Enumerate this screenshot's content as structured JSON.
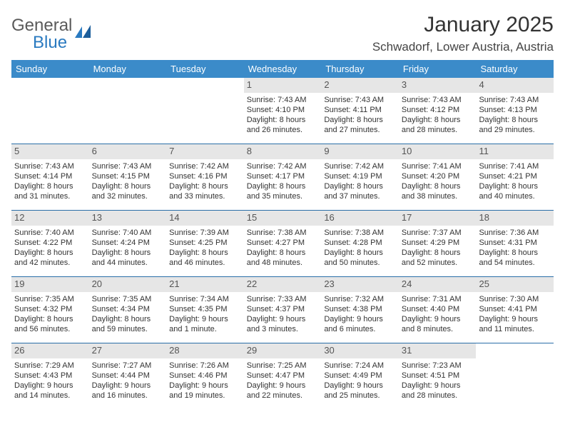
{
  "brand": {
    "general": "General",
    "blue": "Blue"
  },
  "title": "January 2025",
  "location": "Schwadorf, Lower Austria, Austria",
  "colors": {
    "header_bg": "#3b8bc9",
    "daynum_bg": "#e6e6e6",
    "week_border": "#2a6ea8",
    "text": "#333333"
  },
  "dayNames": [
    "Sunday",
    "Monday",
    "Tuesday",
    "Wednesday",
    "Thursday",
    "Friday",
    "Saturday"
  ],
  "grid": [
    [
      null,
      null,
      null,
      {
        "n": "1",
        "sr": "7:43 AM",
        "ss": "4:10 PM",
        "dh": "8",
        "dm": "26"
      },
      {
        "n": "2",
        "sr": "7:43 AM",
        "ss": "4:11 PM",
        "dh": "8",
        "dm": "27"
      },
      {
        "n": "3",
        "sr": "7:43 AM",
        "ss": "4:12 PM",
        "dh": "8",
        "dm": "28"
      },
      {
        "n": "4",
        "sr": "7:43 AM",
        "ss": "4:13 PM",
        "dh": "8",
        "dm": "29"
      }
    ],
    [
      {
        "n": "5",
        "sr": "7:43 AM",
        "ss": "4:14 PM",
        "dh": "8",
        "dm": "31"
      },
      {
        "n": "6",
        "sr": "7:43 AM",
        "ss": "4:15 PM",
        "dh": "8",
        "dm": "32"
      },
      {
        "n": "7",
        "sr": "7:42 AM",
        "ss": "4:16 PM",
        "dh": "8",
        "dm": "33"
      },
      {
        "n": "8",
        "sr": "7:42 AM",
        "ss": "4:17 PM",
        "dh": "8",
        "dm": "35"
      },
      {
        "n": "9",
        "sr": "7:42 AM",
        "ss": "4:19 PM",
        "dh": "8",
        "dm": "37"
      },
      {
        "n": "10",
        "sr": "7:41 AM",
        "ss": "4:20 PM",
        "dh": "8",
        "dm": "38"
      },
      {
        "n": "11",
        "sr": "7:41 AM",
        "ss": "4:21 PM",
        "dh": "8",
        "dm": "40"
      }
    ],
    [
      {
        "n": "12",
        "sr": "7:40 AM",
        "ss": "4:22 PM",
        "dh": "8",
        "dm": "42"
      },
      {
        "n": "13",
        "sr": "7:40 AM",
        "ss": "4:24 PM",
        "dh": "8",
        "dm": "44"
      },
      {
        "n": "14",
        "sr": "7:39 AM",
        "ss": "4:25 PM",
        "dh": "8",
        "dm": "46"
      },
      {
        "n": "15",
        "sr": "7:38 AM",
        "ss": "4:27 PM",
        "dh": "8",
        "dm": "48"
      },
      {
        "n": "16",
        "sr": "7:38 AM",
        "ss": "4:28 PM",
        "dh": "8",
        "dm": "50"
      },
      {
        "n": "17",
        "sr": "7:37 AM",
        "ss": "4:29 PM",
        "dh": "8",
        "dm": "52"
      },
      {
        "n": "18",
        "sr": "7:36 AM",
        "ss": "4:31 PM",
        "dh": "8",
        "dm": "54"
      }
    ],
    [
      {
        "n": "19",
        "sr": "7:35 AM",
        "ss": "4:32 PM",
        "dh": "8",
        "dm": "56"
      },
      {
        "n": "20",
        "sr": "7:35 AM",
        "ss": "4:34 PM",
        "dh": "8",
        "dm": "59"
      },
      {
        "n": "21",
        "sr": "7:34 AM",
        "ss": "4:35 PM",
        "dh": "9",
        "dm": "1",
        "unit": "minute"
      },
      {
        "n": "22",
        "sr": "7:33 AM",
        "ss": "4:37 PM",
        "dh": "9",
        "dm": "3"
      },
      {
        "n": "23",
        "sr": "7:32 AM",
        "ss": "4:38 PM",
        "dh": "9",
        "dm": "6"
      },
      {
        "n": "24",
        "sr": "7:31 AM",
        "ss": "4:40 PM",
        "dh": "9",
        "dm": "8"
      },
      {
        "n": "25",
        "sr": "7:30 AM",
        "ss": "4:41 PM",
        "dh": "9",
        "dm": "11"
      }
    ],
    [
      {
        "n": "26",
        "sr": "7:29 AM",
        "ss": "4:43 PM",
        "dh": "9",
        "dm": "14"
      },
      {
        "n": "27",
        "sr": "7:27 AM",
        "ss": "4:44 PM",
        "dh": "9",
        "dm": "16"
      },
      {
        "n": "28",
        "sr": "7:26 AM",
        "ss": "4:46 PM",
        "dh": "9",
        "dm": "19"
      },
      {
        "n": "29",
        "sr": "7:25 AM",
        "ss": "4:47 PM",
        "dh": "9",
        "dm": "22"
      },
      {
        "n": "30",
        "sr": "7:24 AM",
        "ss": "4:49 PM",
        "dh": "9",
        "dm": "25"
      },
      {
        "n": "31",
        "sr": "7:23 AM",
        "ss": "4:51 PM",
        "dh": "9",
        "dm": "28"
      },
      null
    ]
  ]
}
